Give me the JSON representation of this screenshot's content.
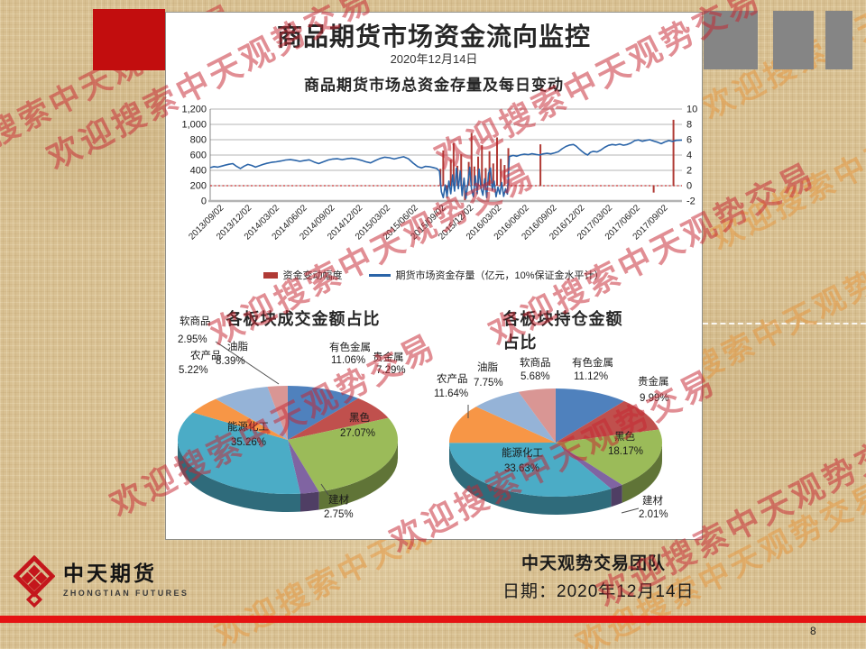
{
  "watermark": {
    "text": "欢迎搜索中天观势交易"
  },
  "slide": {
    "title": "商品期货市场资金流向监控",
    "subtitle": "2020年12月14日"
  },
  "footer": {
    "logo_cn": "中天期货",
    "logo_en": "ZHONGTIAN FUTURES",
    "team": "中天观势交易团队",
    "date_line": "日期：2020年12月14日",
    "page_number": "8"
  },
  "chart_data": [
    {
      "type": "line",
      "title": "商品期货市场总资金存量及每日变动",
      "grid": true,
      "legend_position": "bottom",
      "y_left": {
        "ticks": [
          "0",
          "200",
          "400",
          "600",
          "800",
          "1,000",
          "1,200"
        ],
        "min": 0,
        "max": 1200
      },
      "y_right": {
        "ticks": [
          "-2",
          "0",
          "2",
          "4",
          "6",
          "8",
          "10"
        ],
        "min": -2,
        "max": 10
      },
      "zero_line_color": "#C00000",
      "x_labels": [
        "2013/09/02",
        "2013/12/02",
        "2014/03/02",
        "2014/06/02",
        "2014/09/02",
        "2014/12/02",
        "2015/03/02",
        "2015/06/02",
        "2015/09/02",
        "2015/12/02",
        "2016/03/02",
        "2016/06/02",
        "2016/09/02",
        "2016/12/02",
        "2017/03/02",
        "2017/06/02",
        "2017/09/02"
      ],
      "series": [
        {
          "name": "资金变动幅度",
          "type": "bar",
          "axis": "right",
          "color": "#B03A35",
          "data": [
            [
              0.488,
              2.2
            ],
            [
              0.494,
              4.6
            ],
            [
              0.502,
              -1.6
            ],
            [
              0.51,
              3.4
            ],
            [
              0.516,
              5.6
            ],
            [
              0.524,
              2.6
            ],
            [
              0.532,
              4.1
            ],
            [
              0.54,
              -1.9
            ],
            [
              0.548,
              3.1
            ],
            [
              0.554,
              6.9
            ],
            [
              0.56,
              2.5
            ],
            [
              0.568,
              3.8
            ],
            [
              0.576,
              5.3
            ],
            [
              0.584,
              2.3
            ],
            [
              0.592,
              4.5
            ],
            [
              0.6,
              2.9
            ],
            [
              0.608,
              6.3
            ],
            [
              0.616,
              3.5
            ],
            [
              0.624,
              2.7
            ],
            [
              0.632,
              4.9
            ],
            [
              0.7,
              5.4
            ],
            [
              0.94,
              -0.9
            ],
            [
              0.982,
              8.6
            ]
          ]
        },
        {
          "name": "期货市场资金存量（亿元，10%保证金水平计）",
          "type": "line",
          "axis": "left",
          "color": "#2A64A8",
          "points": [
            [
              0,
              435
            ],
            [
              0.008,
              450
            ],
            [
              0.016,
              442
            ],
            [
              0.024,
              455
            ],
            [
              0.032,
              468
            ],
            [
              0.04,
              480
            ],
            [
              0.048,
              488
            ],
            [
              0.056,
              452
            ],
            [
              0.064,
              425
            ],
            [
              0.072,
              455
            ],
            [
              0.08,
              478
            ],
            [
              0.088,
              465
            ],
            [
              0.096,
              442
            ],
            [
              0.104,
              460
            ],
            [
              0.112,
              478
            ],
            [
              0.12,
              492
            ],
            [
              0.13,
              505
            ],
            [
              0.14,
              512
            ],
            [
              0.15,
              522
            ],
            [
              0.16,
              535
            ],
            [
              0.17,
              540
            ],
            [
              0.18,
              532
            ],
            [
              0.19,
              518
            ],
            [
              0.2,
              528
            ],
            [
              0.21,
              538
            ],
            [
              0.22,
              510
            ],
            [
              0.23,
              488
            ],
            [
              0.24,
              512
            ],
            [
              0.25,
              535
            ],
            [
              0.26,
              548
            ],
            [
              0.27,
              552
            ],
            [
              0.28,
              540
            ],
            [
              0.29,
              552
            ],
            [
              0.3,
              558
            ],
            [
              0.31,
              548
            ],
            [
              0.32,
              532
            ],
            [
              0.33,
              512
            ],
            [
              0.34,
              498
            ],
            [
              0.35,
              528
            ],
            [
              0.36,
              555
            ],
            [
              0.37,
              572
            ],
            [
              0.38,
              565
            ],
            [
              0.39,
              548
            ],
            [
              0.4,
              565
            ],
            [
              0.41,
              578
            ],
            [
              0.42,
              552
            ],
            [
              0.43,
              495
            ],
            [
              0.44,
              448
            ],
            [
              0.448,
              432
            ],
            [
              0.456,
              452
            ],
            [
              0.464,
              448
            ],
            [
              0.472,
              438
            ],
            [
              0.48,
              425
            ],
            [
              0.486,
              390
            ],
            [
              0.49,
              120
            ],
            [
              0.494,
              45
            ],
            [
              0.498,
              210
            ],
            [
              0.502,
              60
            ],
            [
              0.506,
              260
            ],
            [
              0.51,
              95
            ],
            [
              0.514,
              340
            ],
            [
              0.518,
              130
            ],
            [
              0.522,
              430
            ],
            [
              0.526,
              160
            ],
            [
              0.53,
              390
            ],
            [
              0.534,
              70
            ],
            [
              0.538,
              300
            ],
            [
              0.542,
              35
            ],
            [
              0.546,
              230
            ],
            [
              0.55,
              440
            ],
            [
              0.554,
              150
            ],
            [
              0.558,
              55
            ],
            [
              0.562,
              330
            ],
            [
              0.566,
              95
            ],
            [
              0.57,
              415
            ],
            [
              0.574,
              170
            ],
            [
              0.578,
              75
            ],
            [
              0.582,
              290
            ],
            [
              0.586,
              45
            ],
            [
              0.59,
              360
            ],
            [
              0.594,
              430
            ],
            [
              0.598,
              140
            ],
            [
              0.602,
              260
            ],
            [
              0.606,
              55
            ],
            [
              0.61,
              180
            ],
            [
              0.614,
              90
            ],
            [
              0.618,
              240
            ],
            [
              0.622,
              60
            ],
            [
              0.626,
              160
            ],
            [
              0.63,
              90
            ],
            [
              0.634,
              580
            ],
            [
              0.642,
              595
            ],
            [
              0.65,
              585
            ],
            [
              0.658,
              602
            ],
            [
              0.666,
              612
            ],
            [
              0.674,
              605
            ],
            [
              0.682,
              618
            ],
            [
              0.69,
              608
            ],
            [
              0.698,
              600
            ],
            [
              0.706,
              615
            ],
            [
              0.714,
              622
            ],
            [
              0.722,
              615
            ],
            [
              0.73,
              628
            ],
            [
              0.738,
              645
            ],
            [
              0.746,
              682
            ],
            [
              0.754,
              712
            ],
            [
              0.762,
              730
            ],
            [
              0.77,
              738
            ],
            [
              0.776,
              715
            ],
            [
              0.782,
              680
            ],
            [
              0.788,
              648
            ],
            [
              0.794,
              620
            ],
            [
              0.8,
              600
            ],
            [
              0.806,
              635
            ],
            [
              0.812,
              648
            ],
            [
              0.82,
              640
            ],
            [
              0.828,
              665
            ],
            [
              0.836,
              700
            ],
            [
              0.844,
              726
            ],
            [
              0.852,
              738
            ],
            [
              0.86,
              730
            ],
            [
              0.868,
              742
            ],
            [
              0.876,
              728
            ],
            [
              0.884,
              738
            ],
            [
              0.892,
              758
            ],
            [
              0.9,
              788
            ],
            [
              0.908,
              798
            ],
            [
              0.916,
              780
            ],
            [
              0.924,
              792
            ],
            [
              0.932,
              800
            ],
            [
              0.94,
              782
            ],
            [
              0.948,
              768
            ],
            [
              0.956,
              748
            ],
            [
              0.964,
              772
            ],
            [
              0.972,
              788
            ],
            [
              0.98,
              778
            ],
            [
              0.988,
              792
            ],
            [
              1,
              795
            ]
          ]
        }
      ]
    },
    {
      "type": "pie",
      "title": "各板块成交金额占比",
      "slices": [
        {
          "name": "有色金属",
          "pct": "11.06%",
          "value": 11.06,
          "color": "#4F81BD"
        },
        {
          "name": "贵金属",
          "pct": "7.29%",
          "value": 7.29,
          "color": "#C0504D"
        },
        {
          "name": "黑色",
          "pct": "27.07%",
          "value": 27.07,
          "color": "#9BBB59"
        },
        {
          "name": "建材",
          "pct": "2.75%",
          "value": 2.75,
          "color": "#8064A2"
        },
        {
          "name": "能源化工",
          "pct": "35.26%",
          "value": 35.26,
          "color": "#4BACC6"
        },
        {
          "name": "农产品",
          "pct": "5.22%",
          "value": 5.22,
          "color": "#F79646"
        },
        {
          "name": "油脂",
          "pct": "8.39%",
          "value": 8.39,
          "color": "#95B3D7"
        },
        {
          "name": "软商品",
          "pct": "2.95%",
          "value": 2.95,
          "color": "#D99694"
        }
      ]
    },
    {
      "type": "pie",
      "title": "各板块持仓金额占比",
      "slices": [
        {
          "name": "有色金属",
          "pct": "11.12%",
          "value": 11.12,
          "color": "#4F81BD"
        },
        {
          "name": "贵金属",
          "pct": "9.99%",
          "value": 9.99,
          "color": "#C0504D"
        },
        {
          "name": "黑色",
          "pct": "18.17%",
          "value": 18.17,
          "color": "#9BBB59"
        },
        {
          "name": "建材",
          "pct": "2.01%",
          "value": 2.01,
          "color": "#8064A2"
        },
        {
          "name": "能源化工",
          "pct": "33.63%",
          "value": 33.63,
          "color": "#4BACC6"
        },
        {
          "name": "农产品",
          "pct": "11.64%",
          "value": 11.64,
          "color": "#F79646"
        },
        {
          "name": "油脂",
          "pct": "7.75%",
          "value": 7.75,
          "color": "#95B3D7"
        },
        {
          "name": "软商品",
          "pct": "5.68%",
          "value": 5.68,
          "color": "#D99694"
        }
      ]
    }
  ]
}
